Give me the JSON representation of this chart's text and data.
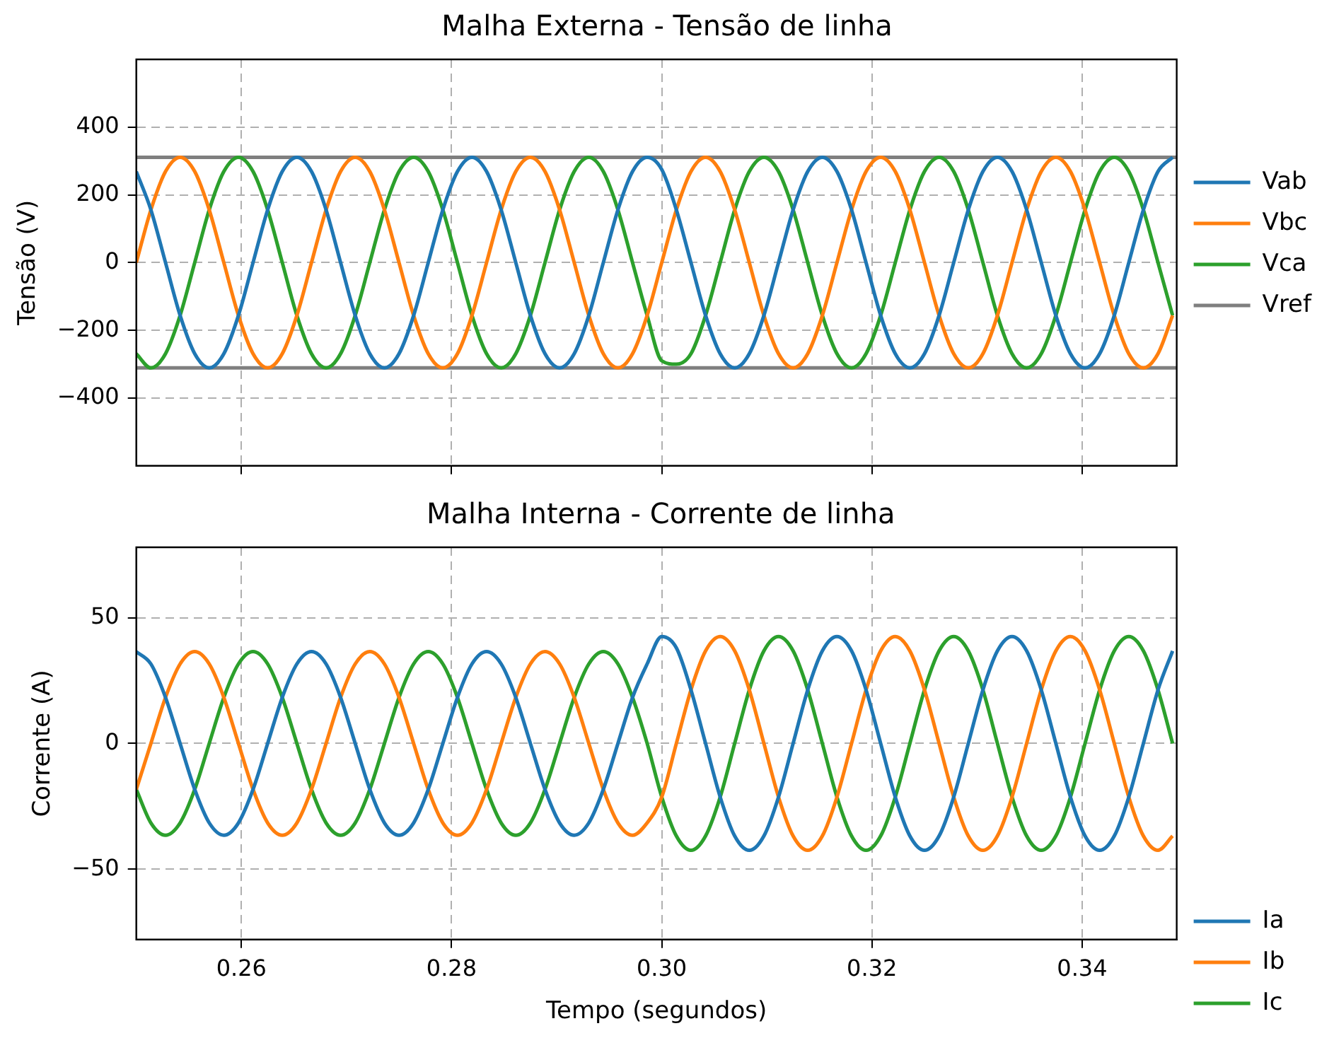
{
  "chart_data": [
    {
      "type": "line",
      "title": "Malha Externa - Tensão de linha",
      "ylabel": "Tensão (V)",
      "x": [
        0.25,
        0.25139,
        0.25278,
        0.25417,
        0.25556,
        0.25694,
        0.25833,
        0.25972,
        0.26111,
        0.2625,
        0.26389,
        0.26528,
        0.26667,
        0.26806,
        0.26944,
        0.27083,
        0.27222,
        0.27361,
        0.275,
        0.27639,
        0.27778,
        0.27917,
        0.28056,
        0.28194,
        0.28333,
        0.28472,
        0.28611,
        0.2875,
        0.28889,
        0.29028,
        0.29167,
        0.29306,
        0.29444,
        0.29583,
        0.29722,
        0.29861,
        0.3,
        0.30139,
        0.30278,
        0.30417,
        0.30556,
        0.30694,
        0.30833,
        0.30972,
        0.31111,
        0.3125,
        0.31389,
        0.31528,
        0.31667,
        0.31806,
        0.31944,
        0.32083,
        0.32222,
        0.32361,
        0.325,
        0.32639,
        0.32778,
        0.32917,
        0.33056,
        0.33194,
        0.33333,
        0.33472,
        0.33611,
        0.3375,
        0.33889,
        0.34028,
        0.34167,
        0.34306,
        0.34444,
        0.34583,
        0.34722,
        0.34861
      ],
      "series": [
        {
          "name": "Vab",
          "color": "#1f77b4",
          "values": [
            269,
            156,
            0,
            -156,
            -269,
            -311,
            -269,
            -156,
            0,
            156,
            269,
            311,
            269,
            156,
            0,
            -156,
            -269,
            -311,
            -269,
            -156,
            0,
            156,
            269,
            311,
            269,
            156,
            0,
            -156,
            -269,
            -311,
            -269,
            -156,
            0,
            156,
            269,
            311,
            275,
            156,
            0,
            -156,
            -269,
            -311,
            -269,
            -156,
            0,
            156,
            269,
            311,
            269,
            156,
            0,
            -156,
            -269,
            -311,
            -269,
            -156,
            0,
            156,
            269,
            311,
            269,
            156,
            0,
            -156,
            -269,
            -311,
            -269,
            -156,
            0,
            156,
            269,
            311
          ]
        },
        {
          "name": "Vbc",
          "color": "#ff7f0e",
          "values": [
            0,
            156,
            269,
            311,
            269,
            156,
            0,
            -156,
            -269,
            -311,
            -269,
            -156,
            0,
            156,
            269,
            311,
            269,
            156,
            0,
            -156,
            -269,
            -311,
            -269,
            -156,
            0,
            156,
            269,
            311,
            269,
            156,
            0,
            -156,
            -269,
            -311,
            -269,
            -156,
            0,
            156,
            269,
            311,
            269,
            156,
            0,
            -156,
            -269,
            -311,
            -269,
            -156,
            0,
            156,
            269,
            311,
            269,
            156,
            0,
            -156,
            -269,
            -311,
            -269,
            -156,
            0,
            156,
            269,
            311,
            269,
            156,
            0,
            -156,
            -269,
            -311,
            -269,
            -156
          ]
        },
        {
          "name": "Vca",
          "color": "#2ca02c",
          "values": [
            -269,
            -311,
            -269,
            -156,
            0,
            156,
            269,
            311,
            269,
            156,
            0,
            -156,
            -269,
            -311,
            -269,
            -156,
            0,
            156,
            269,
            311,
            269,
            156,
            0,
            -156,
            -269,
            -311,
            -269,
            -156,
            0,
            156,
            269,
            311,
            269,
            156,
            0,
            -156,
            -290,
            -300,
            -269,
            -156,
            0,
            156,
            269,
            311,
            269,
            156,
            0,
            -156,
            -269,
            -311,
            -269,
            -156,
            0,
            156,
            269,
            311,
            269,
            156,
            0,
            -156,
            -269,
            -311,
            -269,
            -156,
            0,
            156,
            269,
            311,
            269,
            156,
            0,
            -156
          ]
        }
      ],
      "ref_lines": [
        {
          "axis": "y",
          "value": 311,
          "label": "Vref",
          "color": "#7f7f7f"
        },
        {
          "axis": "y",
          "value": -311,
          "color": "#7f7f7f"
        }
      ],
      "xlim": [
        0.25,
        0.349
      ],
      "xticks": [
        0.26,
        0.28,
        0.3,
        0.32,
        0.34
      ],
      "ylim": [
        -600,
        600
      ],
      "yticks": [
        {
          "value": -400,
          "label": "−400"
        },
        {
          "value": -200,
          "label": "−200"
        },
        0,
        200,
        400
      ],
      "tick_labels": "y",
      "grid": true,
      "legend": "right"
    },
    {
      "type": "line",
      "title": "Malha Interna - Corrente de linha",
      "xlabel": "Tempo (segundos)",
      "ylabel": "Corrente (A)",
      "x": [
        0.25,
        0.25139,
        0.25278,
        0.25417,
        0.25556,
        0.25694,
        0.25833,
        0.25972,
        0.26111,
        0.2625,
        0.26389,
        0.26528,
        0.26667,
        0.26806,
        0.26944,
        0.27083,
        0.27222,
        0.27361,
        0.275,
        0.27639,
        0.27778,
        0.27917,
        0.28056,
        0.28194,
        0.28333,
        0.28472,
        0.28611,
        0.2875,
        0.28889,
        0.29028,
        0.29167,
        0.29306,
        0.29444,
        0.29583,
        0.29722,
        0.29861,
        0.3,
        0.30139,
        0.30278,
        0.30417,
        0.30556,
        0.30694,
        0.30833,
        0.30972,
        0.31111,
        0.3125,
        0.31389,
        0.31528,
        0.31667,
        0.31806,
        0.31944,
        0.32083,
        0.32222,
        0.32361,
        0.325,
        0.32639,
        0.32778,
        0.32917,
        0.33056,
        0.33194,
        0.33333,
        0.33472,
        0.33611,
        0.3375,
        0.33889,
        0.34028,
        0.34167,
        0.34306,
        0.34444,
        0.34583,
        0.34722,
        0.34861
      ],
      "series": [
        {
          "name": "Ia",
          "color": "#1f77b4",
          "values": [
            36.5,
            31.6,
            18.3,
            0,
            -18.3,
            -31.6,
            -36.5,
            -31.6,
            -18.3,
            0,
            18.3,
            31.6,
            36.5,
            31.6,
            18.3,
            0,
            -18.3,
            -31.6,
            -36.5,
            -31.6,
            -18.3,
            0,
            18.3,
            31.6,
            36.5,
            31.6,
            18.3,
            0,
            -18.3,
            -31.6,
            -36.5,
            -31.6,
            -18.3,
            0,
            18.3,
            31.6,
            42.5,
            38,
            21.3,
            0,
            -21.3,
            -36.8,
            -42.5,
            -36.8,
            -21.3,
            0,
            21.3,
            36.8,
            42.5,
            36.8,
            21.3,
            0,
            -21.3,
            -36.8,
            -42.5,
            -36.8,
            -21.3,
            0,
            21.3,
            36.8,
            42.5,
            36.8,
            21.3,
            0,
            -21.3,
            -36.8,
            -42.5,
            -36.8,
            -21.3,
            0,
            21.3,
            36.8
          ]
        },
        {
          "name": "Ib",
          "color": "#ff7f0e",
          "values": [
            -18.3,
            0,
            18.3,
            31.6,
            36.5,
            31.6,
            18.3,
            0,
            -18.3,
            -31.6,
            -36.5,
            -31.6,
            -18.3,
            0,
            18.3,
            31.6,
            36.5,
            31.6,
            18.3,
            0,
            -18.3,
            -31.6,
            -36.5,
            -31.6,
            -18.3,
            0,
            18.3,
            31.6,
            36.5,
            31.6,
            18.3,
            0,
            -18.3,
            -31.6,
            -36.5,
            -31.6,
            -21.3,
            0,
            21.3,
            36.8,
            42.5,
            36.8,
            21.3,
            0,
            -21.3,
            -36.8,
            -42.5,
            -36.8,
            -21.3,
            0,
            21.3,
            36.8,
            42.5,
            36.8,
            21.3,
            0,
            -21.3,
            -36.8,
            -42.5,
            -36.8,
            -21.3,
            0,
            21.3,
            36.8,
            42.5,
            36.8,
            21.3,
            0,
            -21.3,
            -36.8,
            -42.5,
            -36.8
          ]
        },
        {
          "name": "Ic",
          "color": "#2ca02c",
          "values": [
            -18.3,
            -31.6,
            -36.5,
            -31.6,
            -18.3,
            0,
            18.3,
            31.6,
            36.5,
            31.6,
            18.3,
            0,
            -18.3,
            -31.6,
            -36.5,
            -31.6,
            -18.3,
            0,
            18.3,
            31.6,
            36.5,
            31.6,
            18.3,
            0,
            -18.3,
            -31.6,
            -36.5,
            -31.6,
            -18.3,
            0,
            18.3,
            31.6,
            36.5,
            31.6,
            18.3,
            0,
            -21.3,
            -36.8,
            -42.5,
            -36.8,
            -21.3,
            0,
            21.3,
            36.8,
            42.5,
            36.8,
            21.3,
            0,
            -21.3,
            -36.8,
            -42.5,
            -36.8,
            -21.3,
            0,
            21.3,
            36.8,
            42.5,
            36.8,
            21.3,
            0,
            -21.3,
            -36.8,
            -42.5,
            -36.8,
            -21.3,
            0,
            21.3,
            36.8,
            42.5,
            36.8,
            21.3,
            0
          ]
        }
      ],
      "xlim": [
        0.25,
        0.349
      ],
      "xticks": [
        0.26,
        0.28,
        {
          "value": 0.3,
          "label": "0.30"
        },
        0.32,
        0.34
      ],
      "ylim": [
        -78,
        78
      ],
      "yticks": [
        {
          "value": -50,
          "label": "−50"
        },
        0,
        50
      ],
      "grid": true,
      "legend": "bottom right"
    }
  ]
}
